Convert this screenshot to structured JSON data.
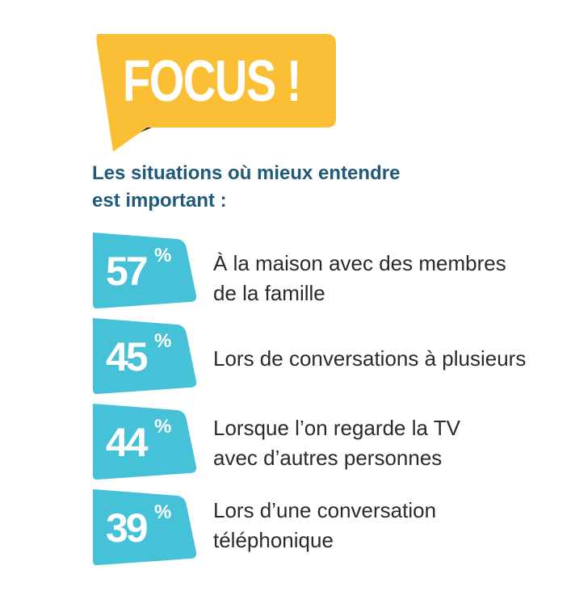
{
  "focus": {
    "title": "FOCUS !"
  },
  "subtitle": {
    "line1": "Les situations où mieux entendre",
    "line2": "est important :"
  },
  "stats": [
    {
      "value": "57",
      "unit": "%",
      "label_line1": "À la maison avec des membres",
      "label_line2": "de la famille"
    },
    {
      "value": "45",
      "unit": "%",
      "label_line1": "Lors de conversations à plusieurs",
      "label_line2": ""
    },
    {
      "value": "44",
      "unit": "%",
      "label_line1": "Lorsque l’on regarde la TV",
      "label_line2": "avec d’autres personnes"
    },
    {
      "value": "39",
      "unit": "%",
      "label_line1": "Lors d’une conversation",
      "label_line2": "téléphonique"
    }
  ],
  "colors": {
    "focus_yellow": "#fbbf36",
    "focus_shadow": "#2d2a26",
    "subtitle_blue": "#1f5a7a",
    "badge_cyan": "#46c2d8",
    "label_text": "#2a2a2a"
  }
}
